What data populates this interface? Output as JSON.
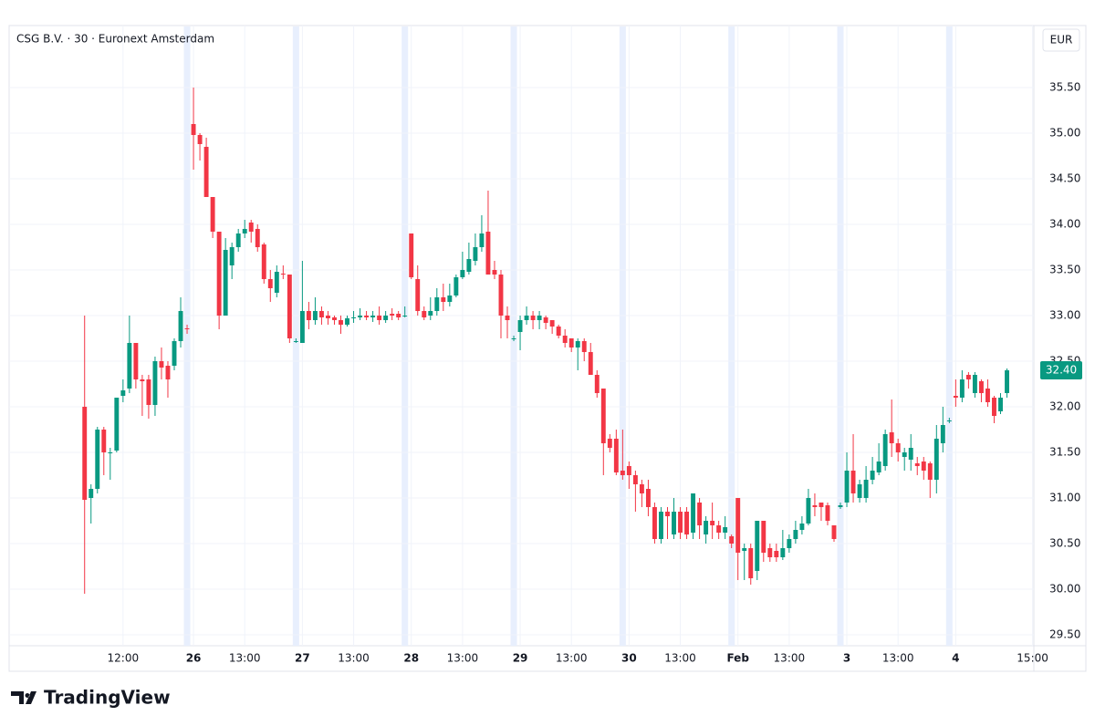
{
  "chart_data": {
    "type": "candlestick",
    "title": "CSG B.V. · 30 · Euronext Amsterdam",
    "currency": "EUR",
    "brand": "TradingView",
    "up_color": "#089981",
    "down_color": "#f23645",
    "grid": true,
    "ylim": [
      29.38,
      36.18
    ],
    "yticks": [
      {
        "value": 29.5,
        "label": "29.50"
      },
      {
        "value": 30,
        "label": "30.00"
      },
      {
        "value": 30.5,
        "label": "30.50"
      },
      {
        "value": 31,
        "label": "31.00"
      },
      {
        "value": 31.5,
        "label": "31.50"
      },
      {
        "value": 32,
        "label": "32.00"
      },
      {
        "value": 32.5,
        "label": "32.50"
      },
      {
        "value": 33,
        "label": "33.00"
      },
      {
        "value": 33.5,
        "label": "33.50"
      },
      {
        "value": 34,
        "label": "34.00"
      },
      {
        "value": 34.5,
        "label": "34.50"
      },
      {
        "value": 35,
        "label": "35.00"
      },
      {
        "value": 35.5,
        "label": "35.50"
      }
    ],
    "xlim": [
      -11.5,
      148.2
    ],
    "xticks": [
      {
        "value": 6,
        "label": "12:00"
      },
      {
        "value": 17,
        "label": "26"
      },
      {
        "value": 25,
        "label": "13:00"
      },
      {
        "value": 34,
        "label": "27"
      },
      {
        "value": 42,
        "label": "13:00"
      },
      {
        "value": 51,
        "label": "28"
      },
      {
        "value": 59,
        "label": "13:00"
      },
      {
        "value": 68,
        "label": "29"
      },
      {
        "value": 76,
        "label": "13:00"
      },
      {
        "value": 85,
        "label": "30"
      },
      {
        "value": 93,
        "label": "13:00"
      },
      {
        "value": 102,
        "label": "Feb"
      },
      {
        "value": 110,
        "label": "13:00"
      },
      {
        "value": 119,
        "label": "3"
      },
      {
        "value": 127,
        "label": "13:00"
      },
      {
        "value": 136,
        "label": "4"
      },
      {
        "value": 148,
        "label": "15:00"
      }
    ],
    "last_price": {
      "value": 32.4,
      "label": "32.40"
    },
    "open": [
      32.0,
      31.0,
      31.1,
      31.75,
      31.5,
      31.52,
      32.12,
      32.2,
      32.7,
      32.3,
      32.3,
      32.02,
      32.5,
      32.45,
      32.45,
      32.72,
      32.86,
      35.1,
      34.98,
      34.85,
      34.3,
      33.92,
      33.0,
      33.55,
      33.75,
      33.9,
      34.02,
      33.95,
      33.78,
      33.4,
      33.25,
      33.46,
      33.45,
      32.72,
      32.7,
      33.05,
      32.95,
      33.05,
      33.0,
      32.98,
      32.95,
      32.9,
      32.97,
      32.98,
      33.0,
      32.98,
      33.0,
      32.95,
      33.02,
      33.02,
      33.0,
      33.9,
      33.4,
      33.05,
      33.0,
      33.05,
      33.2,
      33.15,
      33.22,
      33.42,
      33.48,
      33.6,
      33.75,
      33.92,
      33.5,
      33.45,
      33.0,
      32.75,
      32.82,
      32.95,
      33.0,
      32.95,
      32.98,
      32.95,
      32.88,
      32.78,
      32.75,
      32.65,
      32.72,
      32.6,
      32.35,
      32.2,
      31.65,
      31.65,
      31.3,
      31.35,
      31.25,
      31.15,
      31.1,
      30.9,
      30.55,
      30.85,
      30.6,
      30.85,
      30.85,
      30.62,
      30.95,
      30.6,
      30.75,
      30.7,
      30.62,
      30.58,
      31.0,
      30.42,
      30.45,
      30.2,
      30.75,
      30.45,
      30.42,
      30.35,
      30.45,
      30.55,
      30.65,
      30.72,
      30.92,
      30.95,
      30.92,
      30.7,
      30.9,
      30.95,
      31.3,
      31.0,
      31.0,
      31.2,
      31.28,
      31.35,
      31.72,
      31.6,
      31.45,
      31.42,
      31.38,
      31.4,
      31.38,
      31.2,
      31.6,
      31.85,
      32.12,
      32.1,
      32.35,
      32.15,
      32.28,
      32.2,
      32.1,
      31.95,
      32.15
    ],
    "high": [
      33.0,
      31.15,
      31.78,
      31.78,
      31.55,
      32.1,
      32.3,
      33.0,
      32.7,
      32.35,
      32.35,
      32.55,
      32.65,
      32.5,
      32.75,
      33.2,
      32.9,
      35.5,
      35.0,
      34.95,
      34.3,
      33.92,
      33.85,
      33.8,
      33.95,
      34.05,
      34.05,
      34.0,
      33.8,
      33.5,
      33.55,
      33.55,
      33.45,
      32.75,
      33.6,
      33.15,
      33.2,
      33.1,
      33.05,
      33.0,
      33.0,
      33.0,
      33.05,
      33.08,
      33.05,
      33.05,
      33.1,
      33.05,
      33.08,
      33.05,
      33.1,
      33.9,
      33.55,
      33.1,
      33.2,
      33.3,
      33.35,
      33.35,
      33.45,
      33.7,
      33.8,
      33.9,
      34.1,
      34.37,
      33.6,
      33.5,
      33.1,
      32.78,
      33.0,
      33.1,
      33.05,
      33.05,
      33.0,
      32.95,
      32.9,
      32.85,
      32.75,
      32.75,
      32.75,
      32.7,
      32.4,
      32.2,
      31.7,
      31.75,
      31.75,
      31.4,
      31.3,
      31.2,
      31.2,
      30.95,
      30.9,
      30.9,
      31.0,
      30.9,
      30.9,
      31.05,
      31.0,
      30.8,
      30.95,
      30.75,
      30.8,
      30.6,
      31.0,
      30.5,
      30.5,
      30.75,
      30.75,
      30.5,
      30.5,
      30.65,
      30.6,
      30.75,
      30.8,
      31.1,
      31.05,
      30.95,
      30.95,
      30.7,
      30.95,
      31.5,
      31.7,
      31.2,
      31.35,
      31.45,
      31.6,
      31.75,
      32.08,
      31.65,
      31.55,
      31.7,
      31.45,
      31.45,
      31.4,
      31.8,
      32.0,
      31.88,
      32.3,
      32.4,
      32.38,
      32.38,
      32.3,
      32.3,
      32.12,
      32.15,
      32.42
    ],
    "low": [
      29.95,
      30.72,
      31.05,
      31.25,
      31.2,
      31.5,
      32.05,
      32.15,
      32.2,
      31.9,
      31.87,
      31.9,
      32.3,
      32.1,
      32.4,
      32.65,
      32.8,
      34.6,
      34.7,
      34.3,
      33.85,
      32.85,
      33.0,
      33.4,
      33.7,
      33.85,
      33.8,
      33.7,
      33.35,
      33.15,
      33.2,
      33.4,
      32.7,
      32.7,
      32.7,
      32.85,
      32.9,
      32.9,
      32.9,
      32.9,
      32.8,
      32.88,
      32.92,
      32.95,
      32.95,
      32.93,
      32.9,
      32.92,
      32.95,
      32.95,
      32.98,
      33.4,
      33.0,
      32.95,
      32.95,
      33.0,
      33.05,
      33.1,
      33.2,
      33.4,
      33.45,
      33.55,
      33.7,
      33.45,
      33.4,
      32.75,
      32.75,
      32.72,
      32.62,
      32.9,
      32.85,
      32.85,
      32.85,
      32.8,
      32.75,
      32.65,
      32.6,
      32.4,
      32.5,
      32.35,
      32.1,
      31.25,
      31.5,
      31.25,
      31.2,
      31.1,
      30.85,
      30.9,
      30.8,
      30.5,
      30.5,
      30.55,
      30.55,
      30.55,
      30.55,
      30.55,
      30.55,
      30.5,
      30.55,
      30.55,
      30.55,
      30.45,
      30.1,
      30.1,
      30.05,
      30.1,
      30.3,
      30.3,
      30.3,
      30.32,
      30.4,
      30.5,
      30.6,
      30.7,
      30.8,
      30.75,
      30.7,
      30.52,
      30.88,
      30.9,
      30.95,
      30.95,
      30.95,
      31.15,
      31.25,
      31.3,
      31.45,
      31.4,
      31.3,
      31.3,
      31.25,
      31.2,
      31.0,
      31.05,
      31.5,
      31.82,
      32.0,
      32.05,
      32.2,
      32.1,
      32.05,
      32.0,
      31.82,
      31.92,
      32.1
    ],
    "close": [
      30.98,
      31.1,
      31.75,
      31.5,
      31.5,
      32.1,
      32.18,
      32.7,
      32.3,
      32.28,
      32.02,
      32.5,
      32.43,
      32.3,
      32.72,
      33.05,
      32.85,
      34.98,
      34.88,
      34.3,
      33.92,
      33.0,
      33.72,
      33.75,
      33.9,
      33.95,
      33.92,
      33.75,
      33.4,
      33.3,
      33.48,
      33.45,
      32.75,
      32.72,
      33.05,
      32.95,
      33.05,
      32.98,
      32.97,
      32.95,
      32.9,
      32.97,
      32.98,
      33.0,
      32.98,
      33.0,
      32.95,
      33.0,
      33.0,
      32.98,
      33.0,
      33.42,
      33.05,
      32.98,
      33.05,
      33.2,
      33.15,
      33.22,
      33.42,
      33.5,
      33.62,
      33.75,
      33.9,
      33.45,
      33.45,
      33.0,
      32.95,
      32.75,
      32.95,
      33.0,
      32.95,
      33.0,
      32.92,
      32.88,
      32.78,
      32.7,
      32.65,
      32.72,
      32.6,
      32.35,
      32.15,
      31.6,
      31.55,
      31.28,
      31.25,
      31.25,
      31.15,
      31.05,
      30.9,
      30.55,
      30.85,
      30.8,
      30.85,
      30.62,
      30.6,
      31.05,
      30.7,
      30.75,
      30.7,
      30.62,
      30.68,
      30.5,
      30.4,
      30.45,
      30.12,
      30.75,
      30.4,
      30.35,
      30.35,
      30.45,
      30.55,
      30.65,
      30.72,
      31.0,
      30.9,
      30.9,
      30.75,
      30.55,
      30.92,
      31.3,
      31.05,
      31.15,
      31.2,
      31.3,
      31.4,
      31.7,
      31.6,
      31.5,
      31.5,
      31.55,
      31.35,
      31.3,
      31.2,
      31.65,
      31.8,
      31.85,
      32.1,
      32.3,
      32.3,
      32.35,
      32.15,
      32.05,
      31.9,
      32.1,
      32.4
    ]
  }
}
